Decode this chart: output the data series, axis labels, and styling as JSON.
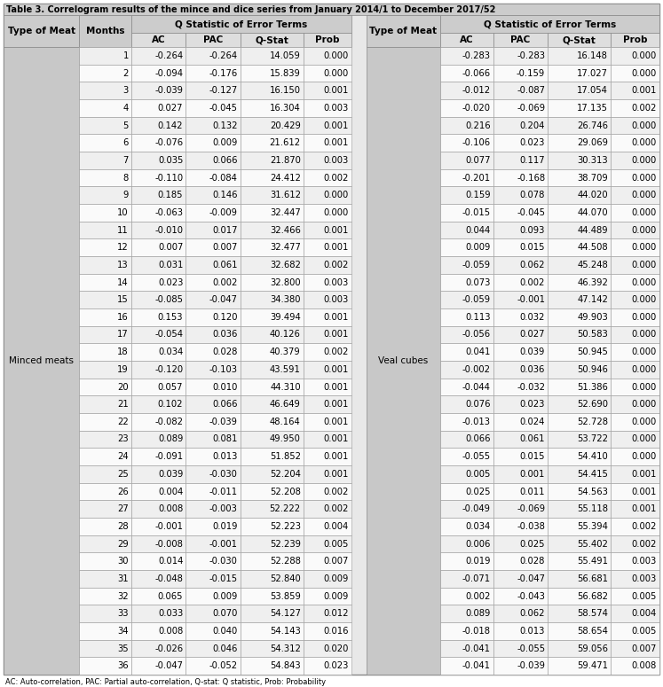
{
  "title": "Table 3. Correlogram results of the mince and dice series from January 2014/1 to December 2017/52",
  "footer": "AC: Auto-correlation, PAC: Partial auto-correlation, Q-stat: Q statistic, Prob: Probability",
  "left_type": "Minced meats",
  "right_type": "Veal cubes",
  "rows": [
    [
      1,
      -0.264,
      -0.264,
      14.059,
      0.0,
      -0.283,
      -0.283,
      16.148,
      0.0
    ],
    [
      2,
      -0.094,
      -0.176,
      15.839,
      0.0,
      -0.066,
      -0.159,
      17.027,
      0.0
    ],
    [
      3,
      -0.039,
      -0.127,
      16.15,
      0.001,
      -0.012,
      -0.087,
      17.054,
      0.001
    ],
    [
      4,
      0.027,
      -0.045,
      16.304,
      0.003,
      -0.02,
      -0.069,
      17.135,
      0.002
    ],
    [
      5,
      0.142,
      0.132,
      20.429,
      0.001,
      0.216,
      0.204,
      26.746,
      0.0
    ],
    [
      6,
      -0.076,
      0.009,
      21.612,
      0.001,
      -0.106,
      0.023,
      29.069,
      0.0
    ],
    [
      7,
      0.035,
      0.066,
      21.87,
      0.003,
      0.077,
      0.117,
      30.313,
      0.0
    ],
    [
      8,
      -0.11,
      -0.084,
      24.412,
      0.002,
      -0.201,
      -0.168,
      38.709,
      0.0
    ],
    [
      9,
      0.185,
      0.146,
      31.612,
      0.0,
      0.159,
      0.078,
      44.02,
      0.0
    ],
    [
      10,
      -0.063,
      -0.009,
      32.447,
      0.0,
      -0.015,
      -0.045,
      44.07,
      0.0
    ],
    [
      11,
      -0.01,
      0.017,
      32.466,
      0.001,
      0.044,
      0.093,
      44.489,
      0.0
    ],
    [
      12,
      0.007,
      0.007,
      32.477,
      0.001,
      0.009,
      0.015,
      44.508,
      0.0
    ],
    [
      13,
      0.031,
      0.061,
      32.682,
      0.002,
      -0.059,
      0.062,
      45.248,
      0.0
    ],
    [
      14,
      0.023,
      0.002,
      32.8,
      0.003,
      0.073,
      0.002,
      46.392,
      0.0
    ],
    [
      15,
      -0.085,
      -0.047,
      34.38,
      0.003,
      -0.059,
      -0.001,
      47.142,
      0.0
    ],
    [
      16,
      0.153,
      0.12,
      39.494,
      0.001,
      0.113,
      0.032,
      49.903,
      0.0
    ],
    [
      17,
      -0.054,
      0.036,
      40.126,
      0.001,
      -0.056,
      0.027,
      50.583,
      0.0
    ],
    [
      18,
      0.034,
      0.028,
      40.379,
      0.002,
      0.041,
      0.039,
      50.945,
      0.0
    ],
    [
      19,
      -0.12,
      -0.103,
      43.591,
      0.001,
      -0.002,
      0.036,
      50.946,
      0.0
    ],
    [
      20,
      0.057,
      0.01,
      44.31,
      0.001,
      -0.044,
      -0.032,
      51.386,
      0.0
    ],
    [
      21,
      0.102,
      0.066,
      46.649,
      0.001,
      0.076,
      0.023,
      52.69,
      0.0
    ],
    [
      22,
      -0.082,
      -0.039,
      48.164,
      0.001,
      -0.013,
      0.024,
      52.728,
      0.0
    ],
    [
      23,
      0.089,
      0.081,
      49.95,
      0.001,
      0.066,
      0.061,
      53.722,
      0.0
    ],
    [
      24,
      -0.091,
      0.013,
      51.852,
      0.001,
      -0.055,
      0.015,
      54.41,
      0.0
    ],
    [
      25,
      0.039,
      -0.03,
      52.204,
      0.001,
      0.005,
      0.001,
      54.415,
      0.001
    ],
    [
      26,
      0.004,
      -0.011,
      52.208,
      0.002,
      0.025,
      0.011,
      54.563,
      0.001
    ],
    [
      27,
      0.008,
      -0.003,
      52.222,
      0.002,
      -0.049,
      -0.069,
      55.118,
      0.001
    ],
    [
      28,
      -0.001,
      0.019,
      52.223,
      0.004,
      0.034,
      -0.038,
      55.394,
      0.002
    ],
    [
      29,
      -0.008,
      -0.001,
      52.239,
      0.005,
      0.006,
      0.025,
      55.402,
      0.002
    ],
    [
      30,
      0.014,
      -0.03,
      52.288,
      0.007,
      0.019,
      0.028,
      55.491,
      0.003
    ],
    [
      31,
      -0.048,
      -0.015,
      52.84,
      0.009,
      -0.071,
      -0.047,
      56.681,
      0.003
    ],
    [
      32,
      0.065,
      0.009,
      53.859,
      0.009,
      0.002,
      -0.043,
      56.682,
      0.005
    ],
    [
      33,
      0.033,
      0.07,
      54.127,
      0.012,
      0.089,
      0.062,
      58.574,
      0.004
    ],
    [
      34,
      0.008,
      0.04,
      54.143,
      0.016,
      -0.018,
      0.013,
      58.654,
      0.005
    ],
    [
      35,
      -0.026,
      0.046,
      54.312,
      0.02,
      -0.041,
      -0.055,
      59.056,
      0.007
    ],
    [
      36,
      -0.047,
      -0.052,
      54.843,
      0.023,
      -0.041,
      -0.039,
      59.471,
      0.008
    ]
  ],
  "bg_header": "#cccccc",
  "bg_subheader": "#dedede",
  "bg_row_even": "#efefef",
  "bg_row_odd": "#fafafa",
  "bg_type_col": "#c8c8c8",
  "bg_outer": "#e8e8e8"
}
